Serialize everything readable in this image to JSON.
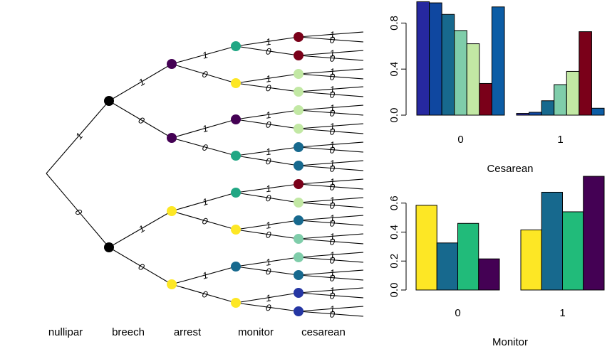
{
  "chart_data": [
    {
      "type": "tree",
      "levels": [
        "nullipar",
        "breech",
        "arrest",
        "monitor",
        "cesarean"
      ],
      "edge_labels": [
        "1",
        "0"
      ],
      "level_node_colors": {
        "breech": [
          "#000000",
          "#000000"
        ],
        "arrest": [
          "#440154",
          "#440154",
          "#FDE725",
          "#FDE725"
        ],
        "monitor": [
          "#21A784",
          "#FDE725",
          "#440154",
          "#21A784",
          "#21A784",
          "#FDE725",
          "#17698E",
          "#FDE725"
        ],
        "cesarean": [
          "#7A0019",
          "#7A0019",
          "#C2E8A4",
          "#C2E8A4",
          "#C2E8A4",
          "#C2E8A4",
          "#17698E",
          "#17698E",
          "#7A0019",
          "#C2E8A4",
          "#17698E",
          "#7FCDAA",
          "#7FCDAA",
          "#17698E",
          "#2536A3",
          "#2536A3"
        ]
      }
    },
    {
      "type": "bar",
      "title": "",
      "xlabel": "Cesarean",
      "ylabel": "",
      "groups": [
        "0",
        "1"
      ],
      "yticks": [
        "0.0",
        "0.4",
        "0.8"
      ],
      "ylim": [
        0,
        1
      ],
      "colors": [
        "#2628A0",
        "#0F47A0",
        "#17698E",
        "#7FCDAA",
        "#C2E8A4",
        "#7A0019",
        "#0C5DA5"
      ],
      "values": [
        [
          0.985,
          0.975,
          0.875,
          0.735,
          0.62,
          0.275,
          0.94
        ],
        [
          0.015,
          0.025,
          0.125,
          0.265,
          0.38,
          0.725,
          0.06
        ]
      ]
    },
    {
      "type": "bar",
      "title": "",
      "xlabel": "Monitor",
      "ylabel": "",
      "groups": [
        "0",
        "1"
      ],
      "yticks": [
        "0.0",
        "0.2",
        "0.4",
        "0.6"
      ],
      "ylim": [
        0,
        0.8
      ],
      "colors": [
        "#FDE725",
        "#17698E",
        "#21BB7A",
        "#440154"
      ],
      "values": [
        [
          0.585,
          0.325,
          0.46,
          0.215
        ],
        [
          0.415,
          0.675,
          0.54,
          0.785
        ]
      ]
    }
  ]
}
